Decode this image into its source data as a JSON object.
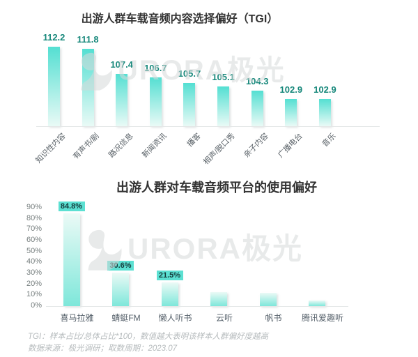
{
  "chart_data": [
    {
      "type": "bar",
      "title": "出游人群车载音频内容选择偏好（TGI）",
      "categories": [
        "知识性内容",
        "有声书/剧",
        "路况信息",
        "新闻资讯",
        "播客",
        "相声/脱口秀",
        "亲子内容",
        "广播电台",
        "音乐"
      ],
      "values": [
        112.2,
        111.8,
        107.4,
        106.7,
        105.7,
        105.1,
        104.3,
        102.9,
        102.9
      ],
      "value_labels": [
        "112.2",
        "111.8",
        "107.4",
        "106.7",
        "105.7",
        "105.1",
        "104.3",
        "102.9",
        "102.9"
      ],
      "xlabel": "",
      "ylabel": "",
      "ylim": [
        98,
        114
      ],
      "grid": false,
      "legend": "none",
      "axis_ticks_shown": false
    },
    {
      "type": "bar",
      "title": "出游人群对车载音频平台的使用偏好",
      "categories": [
        "喜马拉雅",
        "蜻蜓FM",
        "懒人听书",
        "云听",
        "帆书",
        "腾讯爱趣听"
      ],
      "values": [
        84.8,
        30.6,
        21.5,
        13,
        12,
        5
      ],
      "value_labels": [
        "84.8%",
        "30.6%",
        "21.5%",
        "",
        "",
        ""
      ],
      "labels_shown": [
        true,
        true,
        true,
        false,
        false,
        false
      ],
      "xlabel": "",
      "ylabel": "",
      "y_ticks": [
        "0%",
        "10%",
        "20%",
        "30%",
        "40%",
        "50%",
        "60%",
        "70%",
        "80%",
        "90%"
      ],
      "ylim": [
        0,
        90
      ],
      "grid": false,
      "legend": "none"
    }
  ],
  "watermark": {
    "text": "URORA极光",
    "icon": "aurora-swan-logo"
  },
  "footer": {
    "note_tgi": "TGI：样本占比/总体占比*100，数值越大表明该样本人群偏好度越高",
    "note_source": "数据来源：极光调研；取数周期：2023.07"
  },
  "colors": {
    "bar_top_chart_gradient": [
      "#54dfd2",
      "#e9faf6"
    ],
    "bar_bottom_chart_gradient": [
      "#ebfaf6",
      "#7ee7da"
    ],
    "value_label": "#17887b",
    "data_badge_bg": "#5ce0d2",
    "data_badge_text": "#143c3c",
    "title_text": "#333333",
    "axis_text": "#777f7f",
    "category_text": "#5a6268",
    "footer_text": "#b6bbbd",
    "baseline": "#e4e7e7",
    "watermark": "#d7dada"
  }
}
